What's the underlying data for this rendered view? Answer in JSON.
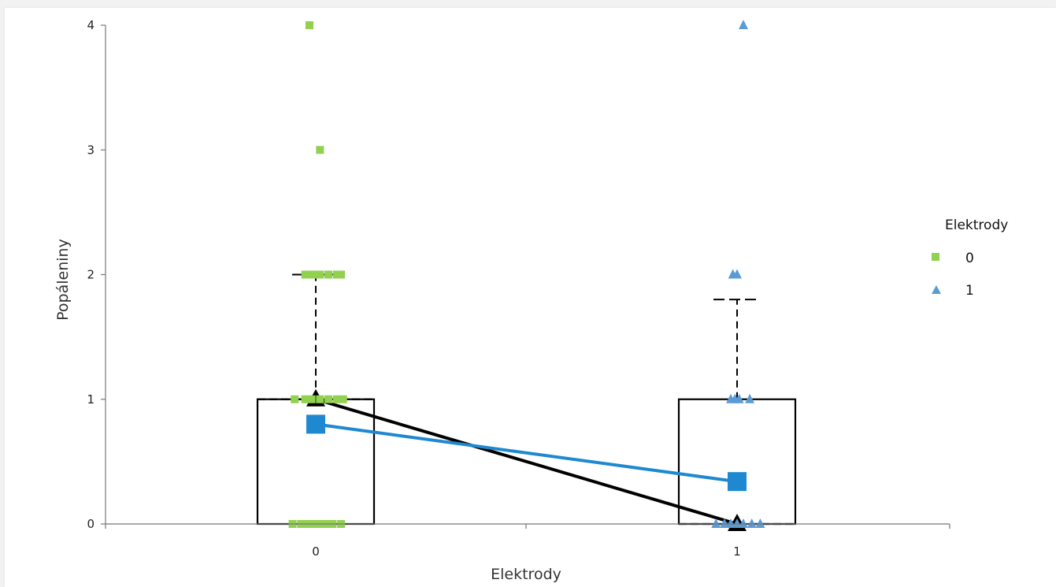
{
  "chart_data": {
    "type": "scatter",
    "xlabel": "Elektrody",
    "ylabel": "Popáleniny",
    "ylim": [
      0,
      4
    ],
    "y_ticks": [
      "0",
      "1",
      "2",
      "3",
      "4"
    ],
    "categories": [
      "0",
      "1"
    ],
    "grid": false,
    "legend": {
      "title": "Elektrody",
      "position": "right",
      "entries": [
        {
          "label": "0",
          "marker": "square",
          "color": "#92d050"
        },
        {
          "label": "1",
          "marker": "triangle",
          "color": "#5b9bd5"
        }
      ]
    },
    "boxes": [
      {
        "category": "0",
        "q1": 0,
        "median": 1,
        "q3": 1,
        "whisker_low": 0,
        "whisker_high": 2
      },
      {
        "category": "1",
        "q1": 0,
        "median": 0,
        "q3": 1,
        "whisker_low": 0,
        "whisker_high": 1.8
      }
    ],
    "median_line": {
      "values": [
        1,
        0
      ],
      "color": "#000000"
    },
    "mean_line": {
      "values": [
        0.8,
        0.34
      ],
      "color": "#1e88d0"
    },
    "series": [
      {
        "name": "0",
        "color": "#92d050",
        "marker": "square",
        "points": [
          {
            "x": -0.03,
            "y": 4
          },
          {
            "x": 0.02,
            "y": 3
          },
          {
            "x": -0.05,
            "y": 2
          },
          {
            "x": -0.02,
            "y": 2
          },
          {
            "x": 0.0,
            "y": 2
          },
          {
            "x": 0.02,
            "y": 2
          },
          {
            "x": 0.06,
            "y": 2
          },
          {
            "x": 0.1,
            "y": 2
          },
          {
            "x": 0.12,
            "y": 2
          },
          {
            "x": -0.1,
            "y": 1
          },
          {
            "x": -0.05,
            "y": 1
          },
          {
            "x": -0.02,
            "y": 1
          },
          {
            "x": 0.02,
            "y": 1
          },
          {
            "x": 0.06,
            "y": 1
          },
          {
            "x": 0.1,
            "y": 1
          },
          {
            "x": 0.13,
            "y": 1
          },
          {
            "x": -0.11,
            "y": 0
          },
          {
            "x": -0.07,
            "y": 0
          },
          {
            "x": -0.04,
            "y": 0
          },
          {
            "x": -0.01,
            "y": 0
          },
          {
            "x": 0.02,
            "y": 0
          },
          {
            "x": 0.05,
            "y": 0
          },
          {
            "x": 0.08,
            "y": 0
          },
          {
            "x": 0.12,
            "y": 0
          }
        ]
      },
      {
        "name": "1",
        "color": "#5b9bd5",
        "marker": "triangle",
        "points": [
          {
            "x": 0.03,
            "y": 4
          },
          {
            "x": -0.02,
            "y": 2
          },
          {
            "x": 0.0,
            "y": 2
          },
          {
            "x": -0.03,
            "y": 1
          },
          {
            "x": -0.01,
            "y": 1
          },
          {
            "x": 0.01,
            "y": 1
          },
          {
            "x": 0.06,
            "y": 1
          },
          {
            "x": -0.1,
            "y": 0
          },
          {
            "x": -0.06,
            "y": 0
          },
          {
            "x": -0.03,
            "y": 0
          },
          {
            "x": 0.0,
            "y": 0
          },
          {
            "x": 0.03,
            "y": 0
          },
          {
            "x": 0.07,
            "y": 0
          },
          {
            "x": 0.11,
            "y": 0
          }
        ]
      }
    ]
  }
}
